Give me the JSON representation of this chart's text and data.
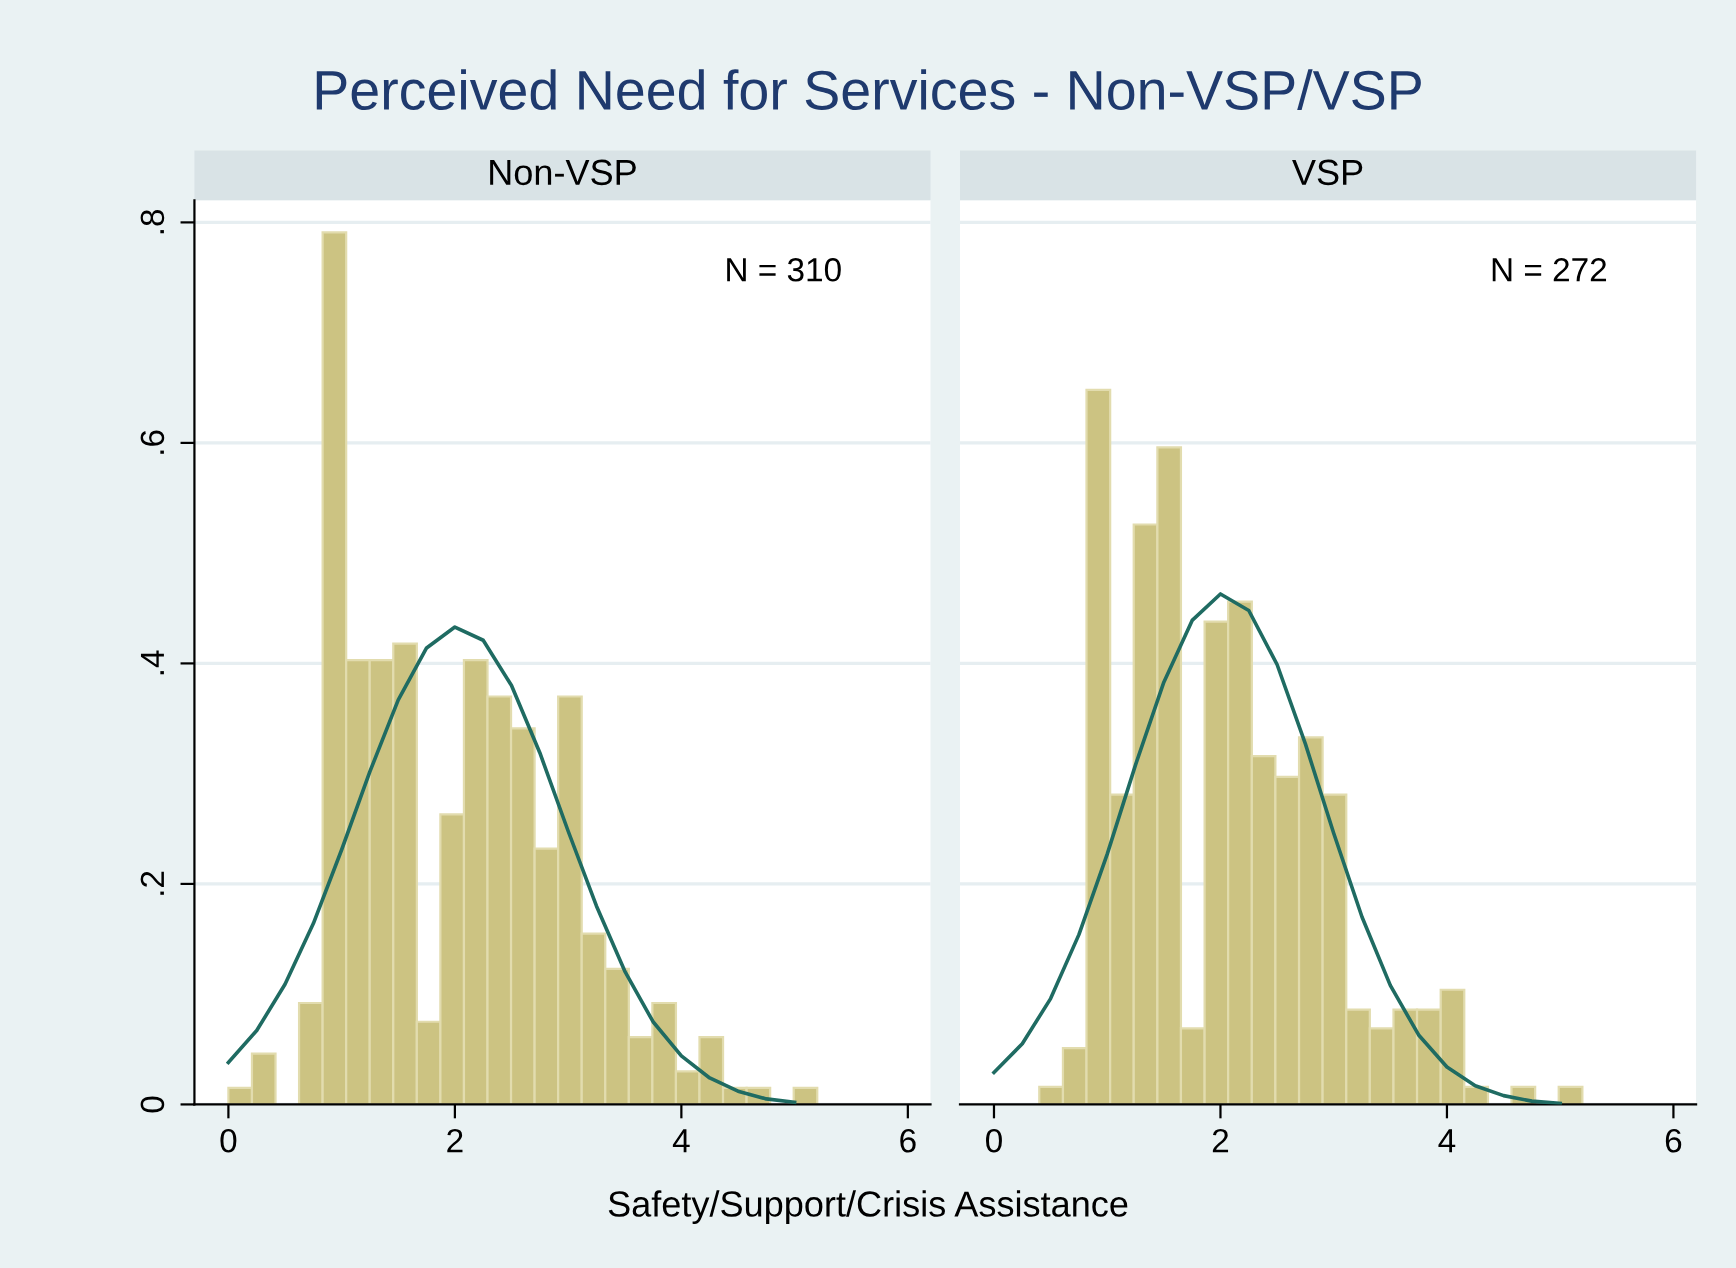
{
  "chart_data": [
    {
      "type": "histogram",
      "title": "Perceived Need for Services - Non-VSP/VSP",
      "subtitle": "Non-VSP",
      "xlabel": "Safety/Support/Crisis Assistance",
      "bins": [
        0,
        0.208,
        0.416,
        0.624,
        0.832,
        1.04,
        1.248,
        1.456,
        1.664,
        1.872,
        2.08,
        2.288,
        2.496,
        2.704,
        2.912,
        3.12,
        3.328,
        3.536,
        3.744,
        3.952,
        4.16,
        4.368,
        4.576,
        4.784,
        4.992,
        5.2
      ],
      "values": [
        0.015,
        0.046,
        0,
        0.092,
        0.791,
        0.403,
        0.403,
        0.418,
        0.075,
        0.263,
        0.403,
        0.37,
        0.341,
        0.232,
        0.37,
        0.155,
        0.123,
        0.061,
        0.092,
        0.03,
        0.061,
        0.015,
        0.015,
        0,
        0.015
      ],
      "color": "#ccc382",
      "series": [
        {
          "type": "line",
          "color": "#1f6b62",
          "x": [
            0,
            0.25,
            0.5,
            0.75,
            1,
            1.25,
            1.5,
            1.75,
            2,
            2.25,
            2.5,
            2.75,
            3,
            3.25,
            3.5,
            3.75,
            4,
            4.25,
            4.5,
            4.75,
            5
          ],
          "values": [
            0.038,
            0.067,
            0.109,
            0.164,
            0.231,
            0.302,
            0.367,
            0.414,
            0.433,
            0.421,
            0.38,
            0.319,
            0.248,
            0.18,
            0.121,
            0.075,
            0.044,
            0.024,
            0.012,
            0.005,
            0.002
          ]
        }
      ],
      "annotations": [
        "N = 310"
      ],
      "xlim": [
        -0.3,
        6.2
      ],
      "xticks": [
        0,
        2,
        4,
        6
      ],
      "ylim": [
        0,
        0.82
      ],
      "yticks": [
        {
          "value": 0,
          "label": "0"
        },
        {
          "value": 0.2,
          "label": ".2"
        },
        {
          "value": 0.4,
          "label": ".4"
        },
        {
          "value": 0.6,
          "label": ".6"
        },
        {
          "value": 0.8,
          "label": ".8"
        }
      ],
      "grid": "y"
    },
    {
      "type": "histogram",
      "subtitle": "VSP",
      "bins": [
        0.4,
        0.609,
        0.817,
        1.026,
        1.234,
        1.443,
        1.651,
        1.86,
        2.068,
        2.277,
        2.485,
        2.694,
        2.902,
        3.111,
        3.319,
        3.528,
        3.736,
        3.945,
        4.153,
        4.362,
        4.57,
        4.779,
        4.987,
        5.196
      ],
      "values": [
        0.016,
        0.051,
        0.648,
        0.281,
        0.526,
        0.596,
        0.069,
        0.438,
        0.456,
        0.316,
        0.297,
        0.333,
        0.281,
        0.086,
        0.069,
        0.086,
        0.086,
        0.104,
        0.016,
        0,
        0.016,
        0,
        0.016
      ],
      "color": "#ccc382",
      "series": [
        {
          "type": "line",
          "color": "#1f6b62",
          "x": [
            0,
            0.25,
            0.5,
            0.75,
            1,
            1.25,
            1.5,
            1.75,
            2,
            2.25,
            2.5,
            2.75,
            3,
            3.25,
            3.5,
            3.75,
            4,
            4.25,
            4.5,
            4.75,
            5
          ],
          "values": [
            0.029,
            0.055,
            0.096,
            0.154,
            0.227,
            0.308,
            0.383,
            0.439,
            0.463,
            0.448,
            0.399,
            0.327,
            0.246,
            0.17,
            0.108,
            0.063,
            0.034,
            0.017,
            0.008,
            0.003,
            0.001
          ]
        }
      ],
      "annotations": [
        "N = 272"
      ],
      "xlim": [
        -0.3,
        6.2
      ],
      "xticks": [
        0,
        2,
        4,
        6
      ],
      "ylim": [
        0,
        0.82
      ],
      "yticks": [
        {
          "value": 0,
          "label": null
        },
        {
          "value": 0.2,
          "label": null
        },
        {
          "value": 0.4,
          "label": null
        },
        {
          "value": 0.6,
          "label": null
        },
        {
          "value": 0.8,
          "label": null
        }
      ],
      "grid": "y",
      "tick_labels": "x"
    }
  ]
}
